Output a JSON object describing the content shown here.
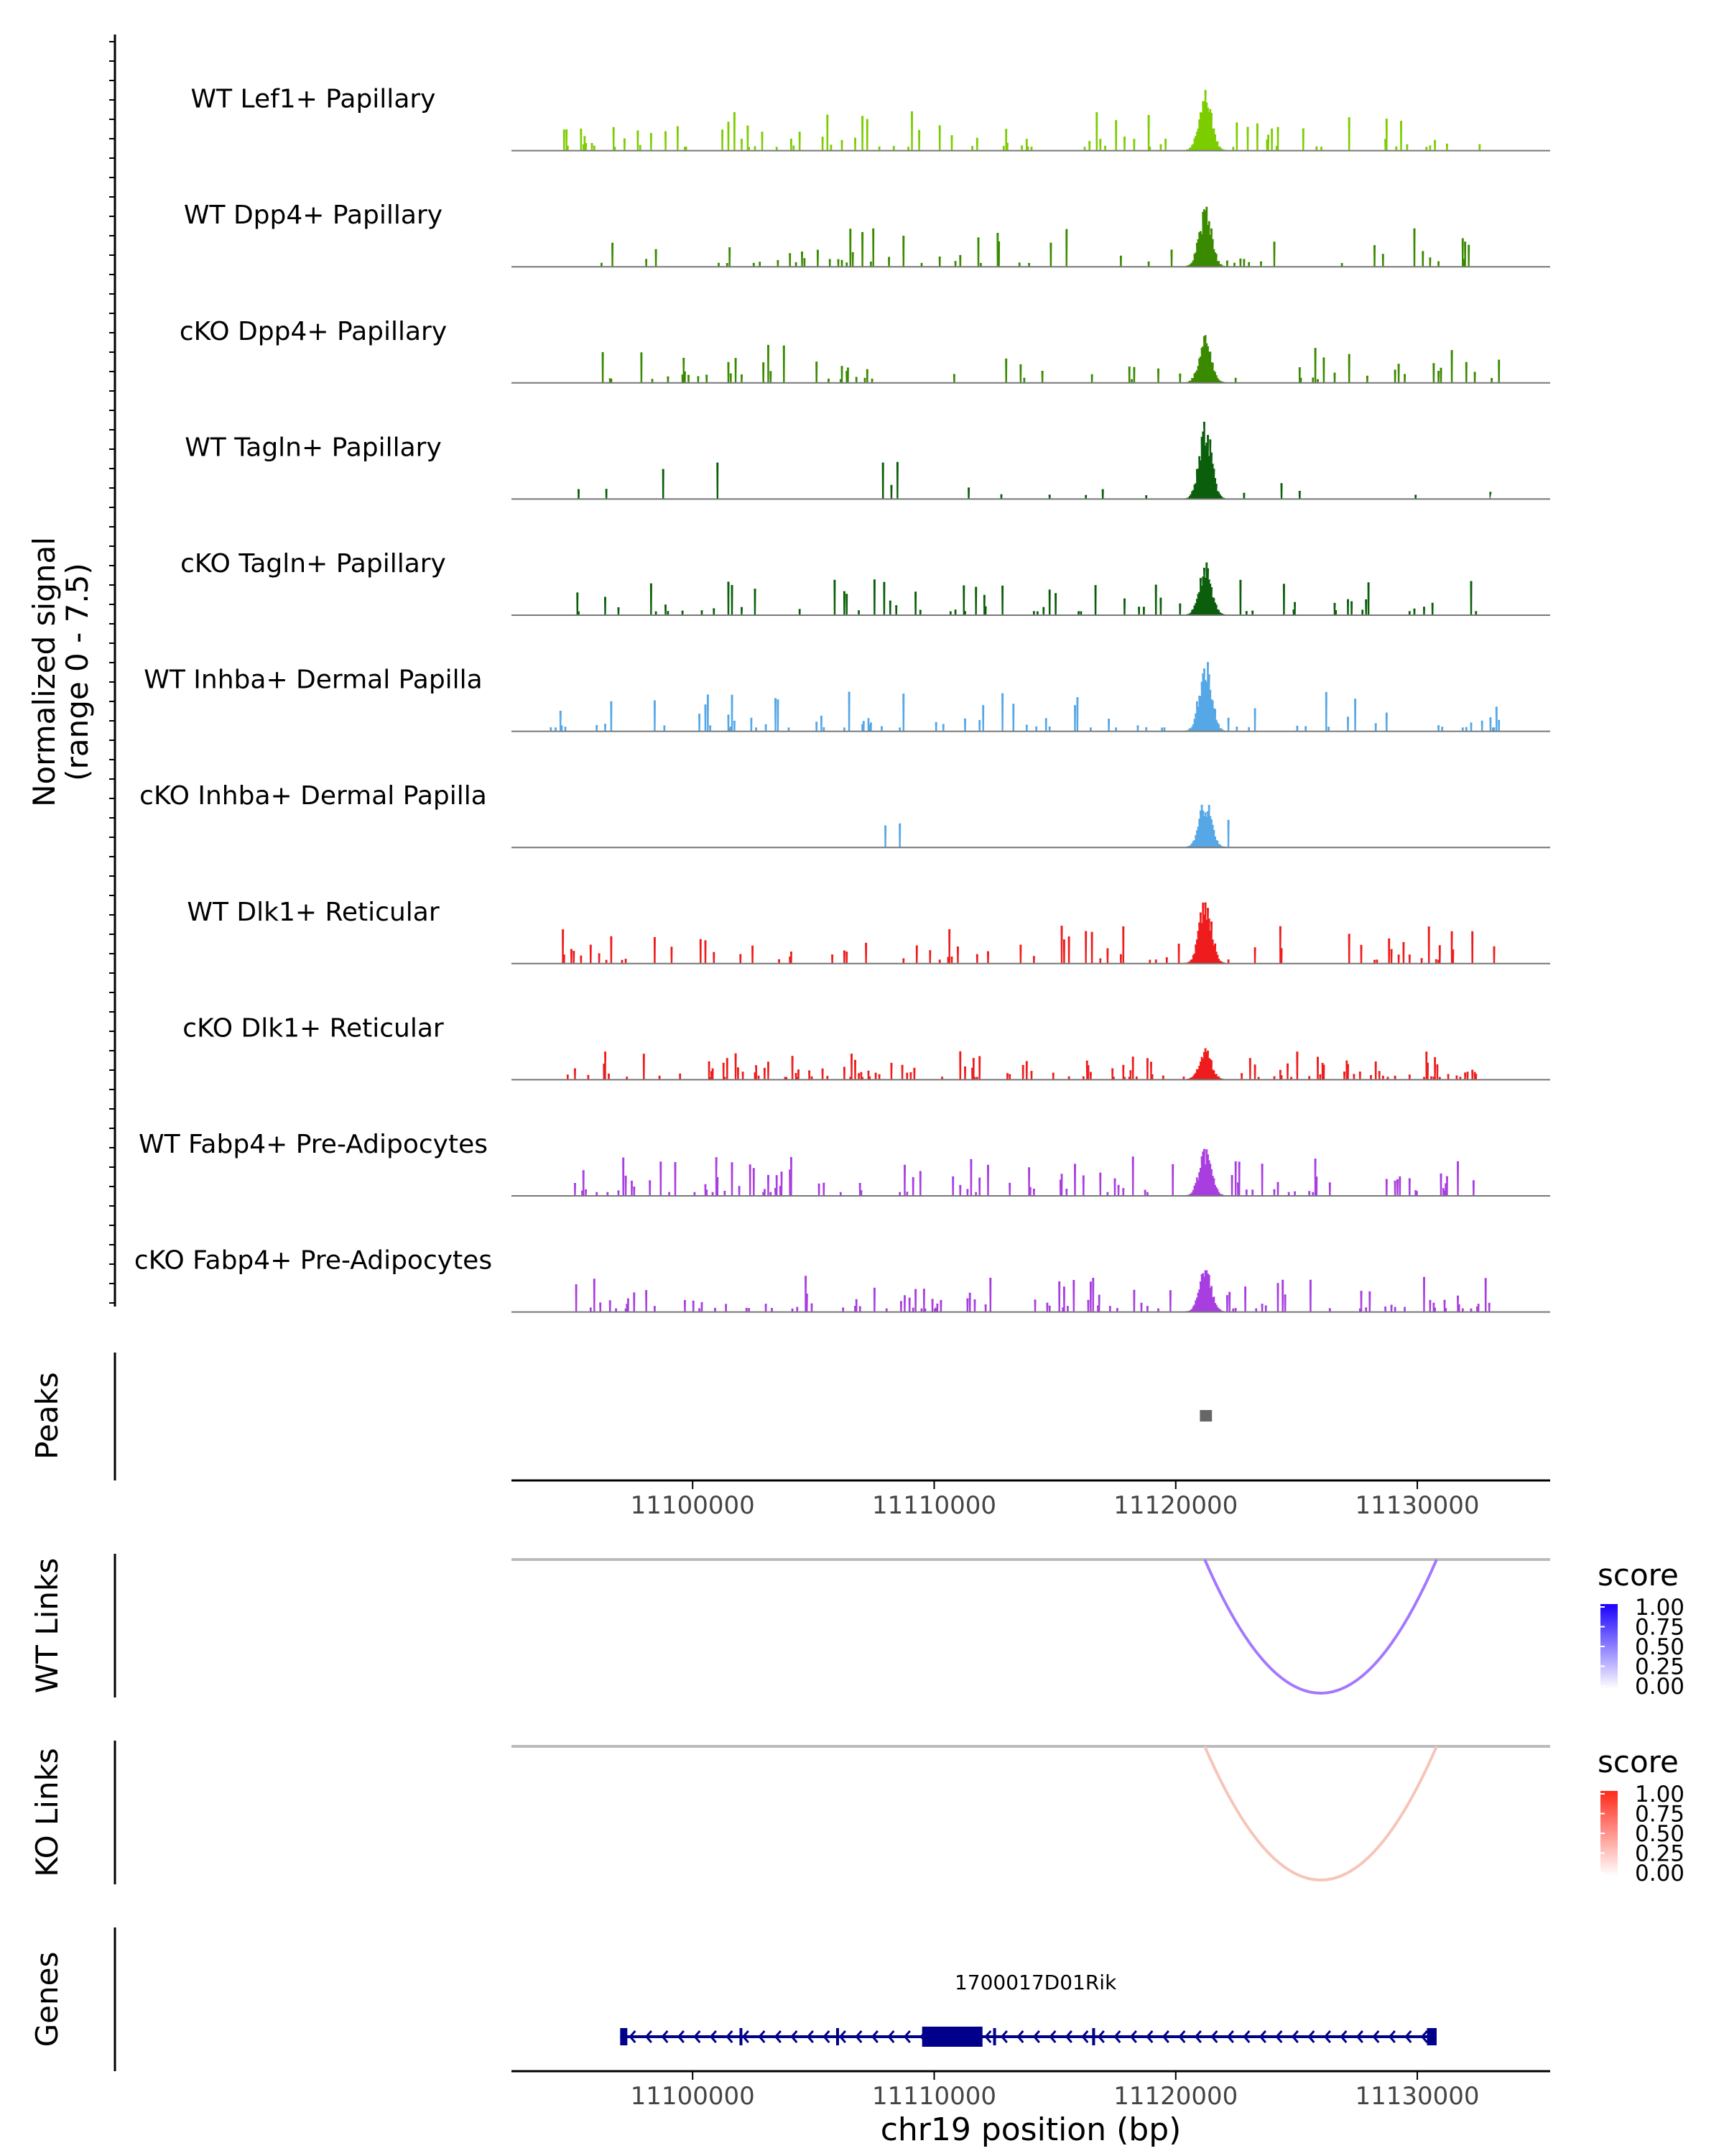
{
  "figure": {
    "y_axis_label_line1": "Normalized signal",
    "y_axis_label_line2": "(range 0 - 7.5)",
    "peaks_label": "Peaks",
    "wt_links_label": "WT Links",
    "ko_links_label": "KO Links",
    "genes_label": "Genes",
    "x_axis_label": "chr19 position (bp)"
  },
  "colors": {
    "axis": "#000000",
    "baseline": "#777777",
    "peak_box": "#666666",
    "link_baseline": "#bbbbbb",
    "wt_arc": "#a477ff",
    "ko_arc": "#f7c4b8",
    "gene": "#00008b"
  },
  "legends": {
    "wt": {
      "title": "score",
      "ticks": [
        "1.00",
        "0.75",
        "0.50",
        "0.25",
        "0.00"
      ],
      "color_high": "#1a00ff",
      "color_low": "#ffffff"
    },
    "ko": {
      "title": "score",
      "ticks": [
        "1.00",
        "0.75",
        "0.50",
        "0.25",
        "0.00"
      ],
      "color_high": "#ff2a1a",
      "color_low": "#ffffff"
    }
  },
  "chart_data": {
    "type": "area",
    "chromosome": "chr19",
    "xlim": [
      11092500,
      11135500
    ],
    "ylim": [
      0,
      7.5
    ],
    "x_ticks": [
      11100000,
      11110000,
      11120000,
      11130000
    ],
    "x_tick_labels": [
      "11100000",
      "11110000",
      "11120000",
      "11130000"
    ],
    "tracks": [
      {
        "name": "WT Lef1+ Papillary",
        "color": "#7ccd00",
        "peak": 5.8,
        "range": [
          11094500,
          11133000
        ],
        "density": 0.55,
        "seed": 11
      },
      {
        "name": "WT Dpp4+ Papillary",
        "color": "#3a8a00",
        "peak": 5.6,
        "range": [
          11096000,
          11133000
        ],
        "density": 0.25,
        "seed": 22
      },
      {
        "name": "cKO Dpp4+ Papillary",
        "color": "#3a8a00",
        "peak": 4.5,
        "range": [
          11094500,
          11133500
        ],
        "density": 0.4,
        "seed": 33
      },
      {
        "name": "WT Tagln+ Papillary",
        "color": "#0b5e0b",
        "peak": 7.5,
        "range": [
          11094500,
          11133000
        ],
        "density": 0.1,
        "seed": 44
      },
      {
        "name": "cKO Tagln+ Papillary",
        "color": "#0b5e0b",
        "peak": 5.0,
        "range": [
          11095000,
          11133000
        ],
        "density": 0.35,
        "seed": 55
      },
      {
        "name": "WT Inhba+ Dermal Papilla",
        "color": "#56a7e6",
        "peak": 7.0,
        "range": [
          11094000,
          11133500
        ],
        "density": 0.45,
        "seed": 66
      },
      {
        "name": "cKO Inhba+ Dermal Papilla",
        "color": "#56a7e6",
        "peak": 4.5,
        "range": [
          11107500,
          11122500
        ],
        "density": 0.05,
        "seed": 77
      },
      {
        "name": "WT Dlk1+ Reticular",
        "color": "#ee1c1c",
        "peak": 6.5,
        "range": [
          11094500,
          11133500
        ],
        "density": 0.4,
        "seed": 88
      },
      {
        "name": "cKO Dlk1+ Reticular",
        "color": "#ee1c1c",
        "peak": 2.8,
        "range": [
          11094500,
          11132500
        ],
        "density": 0.65,
        "seed": 99
      },
      {
        "name": "WT Fabp4+ Pre-Adipocytes",
        "color": "#a83ee0",
        "peak": 4.5,
        "range": [
          11094500,
          11132500
        ],
        "density": 0.55,
        "seed": 111
      },
      {
        "name": "cKO Fabp4+ Pre-Adipocytes",
        "color": "#a83ee0",
        "peak": 4.0,
        "range": [
          11094500,
          11133500
        ],
        "density": 0.55,
        "seed": 122
      }
    ],
    "peaks": [
      {
        "start": 11121000,
        "end": 11121500
      }
    ],
    "wt_links": [
      {
        "start": 11121200,
        "end": 11130800,
        "score": 0.5
      }
    ],
    "ko_links": [
      {
        "start": 11121200,
        "end": 11130800,
        "score": 0.25
      }
    ],
    "gene": {
      "name": "1700017D01Rik",
      "strand": "-",
      "start": 11097000,
      "end": 11130800,
      "exons": [
        {
          "start": 11097000,
          "end": 11097200,
          "height": "small"
        },
        {
          "start": 11109500,
          "end": 11112000,
          "height": "large"
        },
        {
          "start": 11130400,
          "end": 11130800,
          "height": "medium"
        }
      ]
    }
  }
}
